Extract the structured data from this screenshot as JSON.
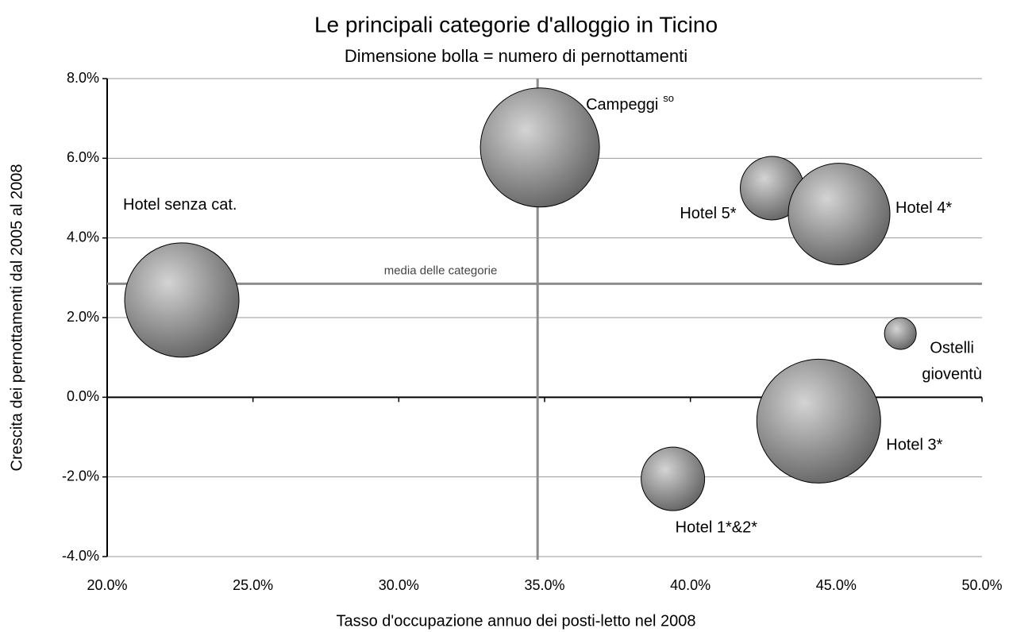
{
  "chart_data": {
    "type": "bubble",
    "title": "Le principali categorie d'alloggio in Ticino",
    "subtitle": "Dimensione bolla = numero di pernottamenti",
    "x_label": "Tasso d'occupazione annuo dei posti-letto nel 2008",
    "y_label": "Crescita dei pernottamenti dal 2005 al 2008",
    "x": [
      22.56,
      34.84,
      42.8,
      45.1,
      47.2,
      44.4,
      39.4
    ],
    "values": [
      2.44,
      6.27,
      5.25,
      4.6,
      1.6,
      -0.6,
      -2.05
    ],
    "sizes": [
      5184,
      5625,
      1600,
      4096,
      400,
      6084,
      1600
    ],
    "labels": [
      {
        "lines": [
          "Hotel senza cat."
        ]
      },
      {
        "lines": [
          "Campeggi"
        ],
        "sup": "so"
      },
      {
        "lines": [
          "Hotel 5*"
        ]
      },
      {
        "lines": [
          "Hotel 4*"
        ]
      },
      {
        "lines": [
          "Ostelli",
          "gioventù"
        ]
      },
      {
        "lines": [
          "Hotel 3*"
        ]
      },
      {
        "lines": [
          "Hotel 1*&2*"
        ]
      }
    ],
    "mean_x": 34.76,
    "mean_y": 2.85,
    "mean_label": "media delle categorie",
    "xlim": [
      20,
      50
    ],
    "xticks": [
      {
        "value": 20,
        "label": "20.0%"
      },
      {
        "value": 25,
        "label": "25.0%"
      },
      {
        "value": 30,
        "label": "30.0%"
      },
      {
        "value": 35,
        "label": "35.0%"
      },
      {
        "value": 40,
        "label": "40.0%"
      },
      {
        "value": 45,
        "label": "45.0%"
      },
      {
        "value": 50,
        "label": "50.0%"
      }
    ],
    "ylim": [
      -4,
      8
    ],
    "yticks": [
      {
        "value": -4,
        "label": "-4.0%"
      },
      {
        "value": -2,
        "label": "-2.0%"
      },
      {
        "value": 0,
        "label": "0.0%"
      },
      {
        "value": 2,
        "label": "2.0%"
      },
      {
        "value": 4,
        "label": "4.0%"
      },
      {
        "value": 6,
        "label": "6.0%"
      },
      {
        "value": 8,
        "label": "8.0%"
      }
    ],
    "grid": true
  }
}
